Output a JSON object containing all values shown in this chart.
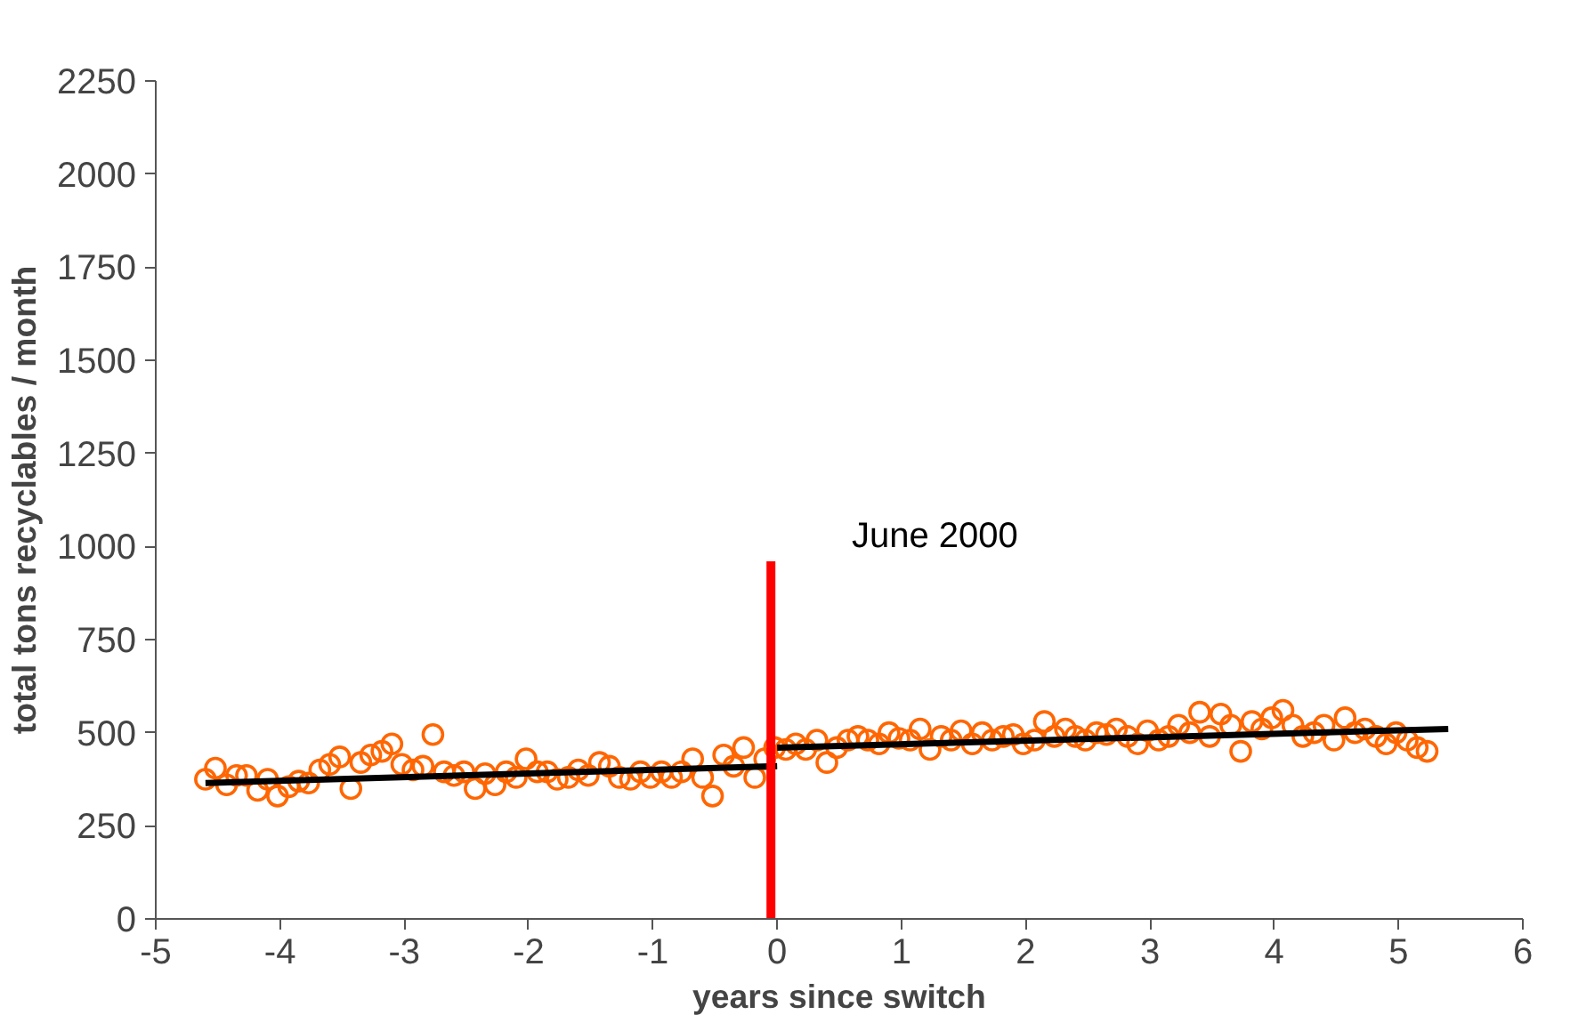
{
  "chart_data": {
    "type": "scatter",
    "xlabel": "years since switch",
    "ylabel": "total tons recyclables / month",
    "xlim": [
      -5,
      6
    ],
    "xticks": [
      -5,
      -4,
      -3,
      -2,
      -1,
      0,
      1,
      2,
      3,
      4,
      5,
      6
    ],
    "ylim": [
      0,
      2250
    ],
    "yticks": [
      0,
      250,
      500,
      750,
      1000,
      1250,
      1500,
      1750,
      2000,
      2250
    ],
    "grid": false,
    "annotations": [
      "June 2000"
    ],
    "series": [
      {
        "color": "#ff6600",
        "marker": "circle",
        "x": [
          -4.6,
          -4.52,
          -4.43,
          -4.35,
          -4.27,
          -4.18,
          -4.1,
          -4.02,
          -3.93,
          -3.85,
          -3.77,
          -3.68,
          -3.6,
          -3.52,
          -3.43,
          -3.35,
          -3.27,
          -3.18,
          -3.1,
          -3.02,
          -2.93,
          -2.85,
          -2.77,
          -2.68,
          -2.6,
          -2.52,
          -2.43,
          -2.35,
          -2.27,
          -2.18,
          -2.1,
          -2.02,
          -1.93,
          -1.85,
          -1.77,
          -1.68,
          -1.6,
          -1.52,
          -1.43,
          -1.35,
          -1.27,
          -1.18,
          -1.1,
          -1.02,
          -0.93,
          -0.85,
          -0.77,
          -0.68,
          -0.6,
          -0.52,
          -0.43,
          -0.35,
          -0.27,
          -0.18,
          -0.1,
          -0.02,
          0.07,
          0.15,
          0.23,
          0.32,
          0.4,
          0.48,
          0.57,
          0.65,
          0.73,
          0.82,
          0.9,
          0.98,
          1.07,
          1.15,
          1.23,
          1.32,
          1.4,
          1.48,
          1.57,
          1.65,
          1.73,
          1.82,
          1.9,
          1.98,
          2.07,
          2.15,
          2.23,
          2.32,
          2.4,
          2.48,
          2.57,
          2.65,
          2.73,
          2.82,
          2.9,
          2.98,
          3.07,
          3.15,
          3.23,
          3.32,
          3.4,
          3.48,
          3.57,
          3.65,
          3.73,
          3.82,
          3.9,
          3.98,
          4.07,
          4.15,
          4.23,
          4.32,
          4.4,
          4.48,
          4.57,
          4.65,
          4.73,
          4.82,
          4.9,
          4.98,
          5.07,
          5.15,
          5.23
        ],
        "values": [
          375,
          405,
          360,
          385,
          385,
          345,
          375,
          330,
          355,
          370,
          365,
          400,
          415,
          435,
          350,
          420,
          440,
          450,
          470,
          415,
          400,
          410,
          495,
          395,
          385,
          395,
          350,
          390,
          360,
          395,
          380,
          430,
          395,
          395,
          375,
          380,
          400,
          385,
          420,
          410,
          380,
          375,
          395,
          380,
          395,
          380,
          395,
          430,
          380,
          330,
          440,
          410,
          460,
          380,
          430,
          460,
          455,
          470,
          455,
          480,
          420,
          460,
          480,
          490,
          480,
          470,
          500,
          485,
          480,
          510,
          455,
          490,
          480,
          505,
          470,
          500,
          480,
          490,
          495,
          470,
          480,
          530,
          490,
          510,
          490,
          480,
          500,
          495,
          510,
          490,
          470,
          505,
          480,
          490,
          520,
          500,
          555,
          490,
          550,
          520,
          450,
          530,
          510,
          540,
          560,
          520,
          490,
          500,
          520,
          480,
          540,
          500,
          510,
          490,
          470,
          500,
          480,
          460,
          450
        ]
      },
      {
        "type": "line",
        "color": "#000000",
        "x": [
          -4.6,
          0
        ],
        "values": [
          365,
          410
        ]
      },
      {
        "type": "line",
        "color": "#000000",
        "x": [
          0,
          5.4
        ],
        "values": [
          460,
          510
        ]
      },
      {
        "type": "line",
        "color": "#ff0000",
        "x": [
          -0.05,
          -0.05
        ],
        "values": [
          0,
          960
        ]
      }
    ]
  }
}
